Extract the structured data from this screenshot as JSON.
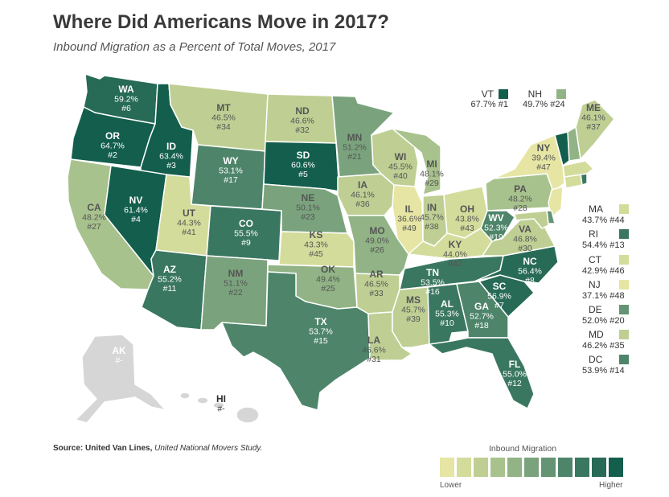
{
  "title": "Where Did Americans Move in 2017?",
  "subtitle": "Inbound Migration as a Percent of Total Moves, 2017",
  "source_label": "Source: United Van Lines,",
  "source_study": "United National Movers Study.",
  "legend": {
    "title": "Inbound Migration",
    "low": "Lower",
    "high": "Higher",
    "colors": [
      "#e6e5a3",
      "#d4dc9b",
      "#bfcf94",
      "#a8c28d",
      "#91b385",
      "#7aa37d",
      "#649474",
      "#4e856a",
      "#3a7761",
      "#276a56",
      "#135e4c"
    ]
  },
  "colors": {
    "c0": "#e6e5a3",
    "c1": "#d4dc9b",
    "c2": "#bfcf94",
    "c3": "#a8c28d",
    "c4": "#91b385",
    "c5": "#7aa37d",
    "c6": "#649474",
    "c7": "#4e856a",
    "c8": "#3a7761",
    "c9": "#276a56",
    "c10": "#135e4c",
    "no_data": "#d6d6d6"
  },
  "states": [
    {
      "abbr": "WA",
      "value": "59.2%",
      "rank": "#6",
      "color": "c9"
    },
    {
      "abbr": "OR",
      "value": "64.7%",
      "rank": "#2",
      "color": "c10"
    },
    {
      "abbr": "CA",
      "value": "48.2%",
      "rank": "#27",
      "color": "c3"
    },
    {
      "abbr": "ID",
      "value": "63.4%",
      "rank": "#3",
      "color": "c10"
    },
    {
      "abbr": "NV",
      "value": "61.4%",
      "rank": "#4",
      "color": "c10"
    },
    {
      "abbr": "MT",
      "value": "46.5%",
      "rank": "#34",
      "color": "c2"
    },
    {
      "abbr": "WY",
      "value": "53.1%",
      "rank": "#17",
      "color": "c7"
    },
    {
      "abbr": "UT",
      "value": "44.3%",
      "rank": "#41",
      "color": "c1"
    },
    {
      "abbr": "AZ",
      "value": "55.2%",
      "rank": "#11",
      "color": "c8"
    },
    {
      "abbr": "CO",
      "value": "55.5%",
      "rank": "#9",
      "color": "c8"
    },
    {
      "abbr": "NM",
      "value": "51.1%",
      "rank": "#22",
      "color": "c5"
    },
    {
      "abbr": "ND",
      "value": "46.6%",
      "rank": "#32",
      "color": "c2"
    },
    {
      "abbr": "SD",
      "value": "60.6%",
      "rank": "#5",
      "color": "c10"
    },
    {
      "abbr": "NE",
      "value": "50.1%",
      "rank": "#23",
      "color": "c5"
    },
    {
      "abbr": "KS",
      "value": "43.3%",
      "rank": "#45",
      "color": "c1"
    },
    {
      "abbr": "OK",
      "value": "49.4%",
      "rank": "#25",
      "color": "c4"
    },
    {
      "abbr": "TX",
      "value": "53.7%",
      "rank": "#15",
      "color": "c7"
    },
    {
      "abbr": "MN",
      "value": "51.2%",
      "rank": "#21",
      "color": "c5"
    },
    {
      "abbr": "IA",
      "value": "46.1%",
      "rank": "#36",
      "color": "c2"
    },
    {
      "abbr": "MO",
      "value": "49.0%",
      "rank": "#26",
      "color": "c4"
    },
    {
      "abbr": "AR",
      "value": "46.5%",
      "rank": "#33",
      "color": "c2"
    },
    {
      "abbr": "LA",
      "value": "46.6%",
      "rank": "#31",
      "color": "c2"
    },
    {
      "abbr": "WI",
      "value": "45.5%",
      "rank": "#40",
      "color": "c2"
    },
    {
      "abbr": "IL",
      "value": "36.6%",
      "rank": "#49",
      "color": "c0"
    },
    {
      "abbr": "MI",
      "value": "48.1%",
      "rank": "#29",
      "color": "c3"
    },
    {
      "abbr": "IN",
      "value": "45.7%",
      "rank": "#38",
      "color": "c2"
    },
    {
      "abbr": "OH",
      "value": "43.8%",
      "rank": "#43",
      "color": "c1"
    },
    {
      "abbr": "KY",
      "value": "44.0%",
      "rank": "#42",
      "color": "c1"
    },
    {
      "abbr": "TN",
      "value": "53.5%",
      "rank": "#16",
      "color": "c8"
    },
    {
      "abbr": "MS",
      "value": "45.7%",
      "rank": "#39",
      "color": "c2"
    },
    {
      "abbr": "AL",
      "value": "55.3%",
      "rank": "#10",
      "color": "c8"
    },
    {
      "abbr": "GA",
      "value": "52.7%",
      "rank": "#18",
      "color": "c7"
    },
    {
      "abbr": "FL",
      "value": "55.0%",
      "rank": "#12",
      "color": "c8"
    },
    {
      "abbr": "SC",
      "value": "56.9%",
      "rank": "#7",
      "color": "c9"
    },
    {
      "abbr": "NC",
      "value": "56.4%",
      "rank": "#8",
      "color": "c9"
    },
    {
      "abbr": "VA",
      "value": "46.8%",
      "rank": "#30",
      "color": "c2"
    },
    {
      "abbr": "WV",
      "value": "52.3%",
      "rank": "#19",
      "color": "c7"
    },
    {
      "abbr": "PA",
      "value": "48.2%",
      "rank": "#28",
      "color": "c3"
    },
    {
      "abbr": "NY",
      "value": "39.4%",
      "rank": "#47",
      "color": "c0"
    },
    {
      "abbr": "ME",
      "value": "46.1%",
      "rank": "#37",
      "color": "c2"
    },
    {
      "abbr": "AK",
      "value": "#-",
      "rank": "",
      "color": "no_data"
    },
    {
      "abbr": "HI",
      "value": "#-",
      "rank": "",
      "color": "no_data"
    }
  ],
  "callouts": [
    {
      "abbr": "VT",
      "value": "67.7% #1",
      "color": "c10"
    },
    {
      "abbr": "NH",
      "value": "49.7% #24",
      "color": "c4"
    }
  ],
  "side_states": [
    {
      "abbr": "MA",
      "value": "43.7% #44",
      "color": "c1"
    },
    {
      "abbr": "RI",
      "value": "54.4% #13",
      "color": "c8"
    },
    {
      "abbr": "CT",
      "value": "42.9% #46",
      "color": "c1"
    },
    {
      "abbr": "NJ",
      "value": "37.1% #48",
      "color": "c0"
    },
    {
      "abbr": "DE",
      "value": "52.0% #20",
      "color": "c6"
    },
    {
      "abbr": "MD",
      "value": "46.2% #35",
      "color": "c2"
    },
    {
      "abbr": "DC",
      "value": "53.9% #14",
      "color": "c7"
    }
  ]
}
